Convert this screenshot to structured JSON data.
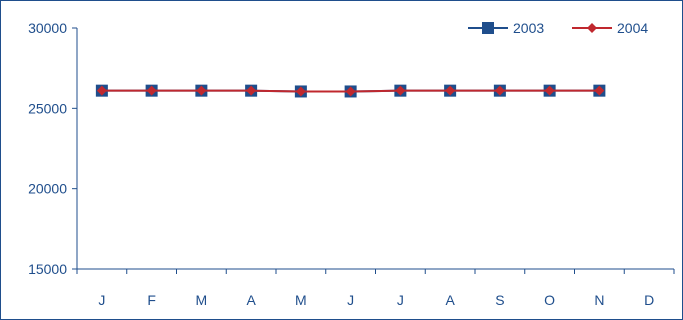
{
  "chart_data": {
    "type": "line",
    "categories": [
      "J",
      "F",
      "M",
      "A",
      "M",
      "J",
      "J",
      "A",
      "S",
      "O",
      "N",
      "D"
    ],
    "series": [
      {
        "name": "2003",
        "color": "#1f4e8c",
        "marker": "square",
        "values": [
          26100,
          26100,
          26100,
          26100,
          26050,
          26050,
          26100,
          26100,
          26100,
          26100,
          26100,
          null
        ]
      },
      {
        "name": "2004",
        "color": "#c0282e",
        "marker": "diamond",
        "values": [
          26100,
          26100,
          26100,
          26100,
          26050,
          26050,
          26100,
          26100,
          26100,
          26100,
          26100,
          null
        ]
      }
    ],
    "ylim": [
      15000,
      30000
    ],
    "yticks": [
      15000,
      20000,
      25000,
      30000
    ],
    "grid": false,
    "legend": "top-right"
  }
}
